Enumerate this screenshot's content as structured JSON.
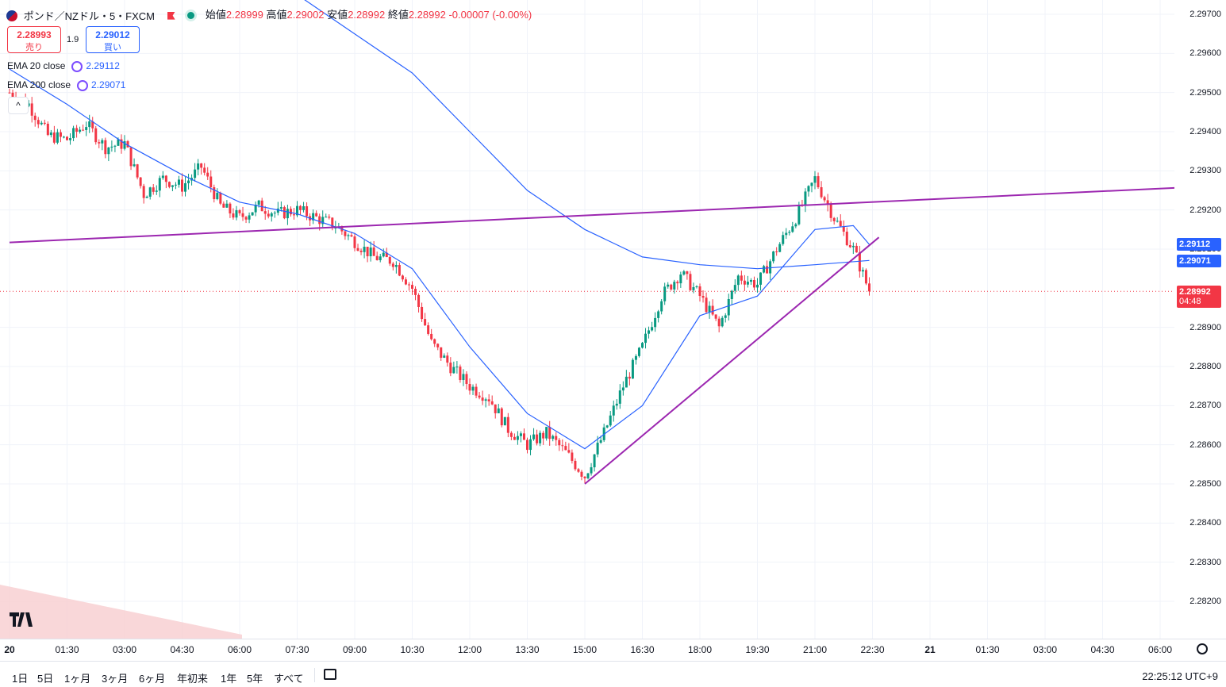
{
  "header": {
    "symbol": "ポンド／NZドル・5・FXCM",
    "open_label": "始値",
    "open": "2.28999",
    "high_label": "高値",
    "high": "2.29002",
    "low_label": "安値",
    "low": "2.28992",
    "close_label": "終値",
    "close": "2.28992",
    "change": "-0.00007 (-0.00%)",
    "flag_icon": "uk-nz-flag-icon",
    "status_icon": "market-open-dot-icon"
  },
  "trade": {
    "sell_price": "2.28993",
    "sell_label": "売り",
    "spread": "1.9",
    "buy_price": "2.29012",
    "buy_label": "買い"
  },
  "indicators": [
    {
      "name": "EMA 20 close",
      "value": "2.29112"
    },
    {
      "name": "EMA 200 close",
      "value": "2.29071"
    }
  ],
  "price_axis": {
    "ticks": [
      "2.29700",
      "2.29600",
      "2.29500",
      "2.29400",
      "2.29300",
      "2.29200",
      "2.29100",
      "2.28900",
      "2.28800",
      "2.28700",
      "2.28600",
      "2.28500",
      "2.28400",
      "2.28300",
      "2.28200"
    ],
    "ema20_label": "2.29112",
    "ema200_label": "2.29071",
    "last_price_label": "2.28992",
    "countdown": "04:48"
  },
  "time_axis": {
    "ticks": [
      "20",
      "01:30",
      "03:00",
      "04:30",
      "06:00",
      "07:30",
      "09:00",
      "10:30",
      "12:00",
      "13:30",
      "15:00",
      "16:30",
      "18:00",
      "19:30",
      "21:00",
      "22:30",
      "21",
      "01:30",
      "03:00",
      "04:30",
      "06:00"
    ]
  },
  "bottom_bar": {
    "ranges": [
      "1日",
      "5日",
      "1ヶ月",
      "3ヶ月",
      "6ヶ月",
      "年初来",
      "1年",
      "5年",
      "すべて"
    ],
    "clock": "22:25:12 UTC+9"
  },
  "colors": {
    "up": "#089981",
    "down": "#f23645",
    "ema": "#2962ff",
    "trendline": "#9c27b0",
    "last_price": "#f23645"
  },
  "chart_data": {
    "type": "candlestick",
    "symbol": "GBPNZD",
    "timeframe": "5",
    "y_range": [
      2.2815,
      2.2975
    ],
    "path_points": [
      {
        "t": "00:00",
        "p": 2.295
      },
      {
        "t": "00:30",
        "p": 2.2947
      },
      {
        "t": "01:00",
        "p": 2.2939
      },
      {
        "t": "01:30",
        "p": 2.2938
      },
      {
        "t": "02:00",
        "p": 2.2942
      },
      {
        "t": "02:30",
        "p": 2.2936
      },
      {
        "t": "03:00",
        "p": 2.2937
      },
      {
        "t": "03:30",
        "p": 2.2924
      },
      {
        "t": "04:00",
        "p": 2.2928
      },
      {
        "t": "04:30",
        "p": 2.2926
      },
      {
        "t": "05:00",
        "p": 2.2931
      },
      {
        "t": "05:30",
        "p": 2.2921
      },
      {
        "t": "06:00",
        "p": 2.2918
      },
      {
        "t": "06:30",
        "p": 2.2921
      },
      {
        "t": "07:00",
        "p": 2.2919
      },
      {
        "t": "07:30",
        "p": 2.292
      },
      {
        "t": "08:00",
        "p": 2.2918
      },
      {
        "t": "08:30",
        "p": 2.2916
      },
      {
        "t": "09:00",
        "p": 2.2912
      },
      {
        "t": "09:30",
        "p": 2.2908
      },
      {
        "t": "10:00",
        "p": 2.2907
      },
      {
        "t": "10:30",
        "p": 2.29
      },
      {
        "t": "11:00",
        "p": 2.2886
      },
      {
        "t": "11:30",
        "p": 2.288
      },
      {
        "t": "12:00",
        "p": 2.2875
      },
      {
        "t": "12:30",
        "p": 2.2872
      },
      {
        "t": "13:00",
        "p": 2.2864
      },
      {
        "t": "13:30",
        "p": 2.286
      },
      {
        "t": "14:00",
        "p": 2.2863
      },
      {
        "t": "14:30",
        "p": 2.2858
      },
      {
        "t": "15:00",
        "p": 2.2852
      },
      {
        "t": "15:30",
        "p": 2.2863
      },
      {
        "t": "16:00",
        "p": 2.2875
      },
      {
        "t": "16:30",
        "p": 2.2885
      },
      {
        "t": "17:00",
        "p": 2.2898
      },
      {
        "t": "17:30",
        "p": 2.2904
      },
      {
        "t": "18:00",
        "p": 2.2898
      },
      {
        "t": "18:30",
        "p": 2.289
      },
      {
        "t": "19:00",
        "p": 2.2903
      },
      {
        "t": "19:30",
        "p": 2.2901
      },
      {
        "t": "20:00",
        "p": 2.291
      },
      {
        "t": "20:30",
        "p": 2.2918
      },
      {
        "t": "21:00",
        "p": 2.2928
      },
      {
        "t": "21:30",
        "p": 2.2918
      },
      {
        "t": "22:00",
        "p": 2.291
      },
      {
        "t": "22:25",
        "p": 2.28992
      }
    ],
    "ema20_points": [
      {
        "t": "00:00",
        "p": 2.2956
      },
      {
        "t": "01:30",
        "p": 2.2947
      },
      {
        "t": "03:00",
        "p": 2.2937
      },
      {
        "t": "04:30",
        "p": 2.2929
      },
      {
        "t": "06:00",
        "p": 2.2922
      },
      {
        "t": "07:30",
        "p": 2.2919
      },
      {
        "t": "09:00",
        "p": 2.2914
      },
      {
        "t": "10:30",
        "p": 2.2905
      },
      {
        "t": "12:00",
        "p": 2.2885
      },
      {
        "t": "13:30",
        "p": 2.2868
      },
      {
        "t": "15:00",
        "p": 2.2859
      },
      {
        "t": "16:30",
        "p": 2.287
      },
      {
        "t": "18:00",
        "p": 2.2893
      },
      {
        "t": "19:30",
        "p": 2.2898
      },
      {
        "t": "21:00",
        "p": 2.2915
      },
      {
        "t": "22:00",
        "p": 2.2916
      },
      {
        "t": "22:25",
        "p": 2.29112
      }
    ],
    "ema200_points": [
      {
        "t": "07:30",
        "p": 2.2975
      },
      {
        "t": "09:00",
        "p": 2.2965
      },
      {
        "t": "10:30",
        "p": 2.2955
      },
      {
        "t": "12:00",
        "p": 2.294
      },
      {
        "t": "13:30",
        "p": 2.2925
      },
      {
        "t": "15:00",
        "p": 2.2915
      },
      {
        "t": "16:30",
        "p": 2.2908
      },
      {
        "t": "18:00",
        "p": 2.2906
      },
      {
        "t": "19:30",
        "p": 2.2905
      },
      {
        "t": "21:00",
        "p": 2.2906
      },
      {
        "t": "22:25",
        "p": 2.29071
      }
    ],
    "trendlines": [
      {
        "name": "resistance",
        "from": {
          "t": "20 00:00",
          "p": 2.29117
        },
        "to": {
          "t": "21 06:30",
          "p": 2.29257
        }
      },
      {
        "name": "support",
        "from": {
          "t": "15:00",
          "p": 2.285
        },
        "to": {
          "t": "22:40",
          "p": 2.2913
        }
      }
    ],
    "last_price": 2.28992,
    "ema20": 2.29112,
    "ema200": 2.29071
  }
}
